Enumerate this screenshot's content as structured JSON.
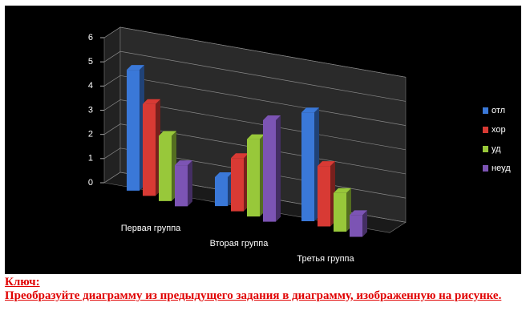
{
  "chart_data": {
    "type": "bar3d",
    "categories": [
      "Первая группа",
      "Вторая группа",
      "Третья  группа"
    ],
    "series": [
      {
        "name": "отл",
        "color": "#3a78d8",
        "values": [
          5,
          1.2,
          4.5
        ]
      },
      {
        "name": "хор",
        "color": "#d83a34",
        "values": [
          3.8,
          2.2,
          2.5
        ]
      },
      {
        "name": "уд",
        "color": "#98c83a",
        "values": [
          2.7,
          3.2,
          1.6
        ]
      },
      {
        "name": "неуд",
        "color": "#7c54b4",
        "values": [
          1.7,
          4.2,
          0.9
        ]
      }
    ],
    "ylim": [
      0,
      6
    ],
    "yticks": [
      0,
      1,
      2,
      3,
      4,
      5,
      6
    ],
    "grid": true,
    "legend": "right"
  },
  "caption": {
    "key_label": "Ключ:",
    "text": "Преобразуйте диаграмму из предыдущего задания в диаграмму, изображенную на рисунке."
  }
}
